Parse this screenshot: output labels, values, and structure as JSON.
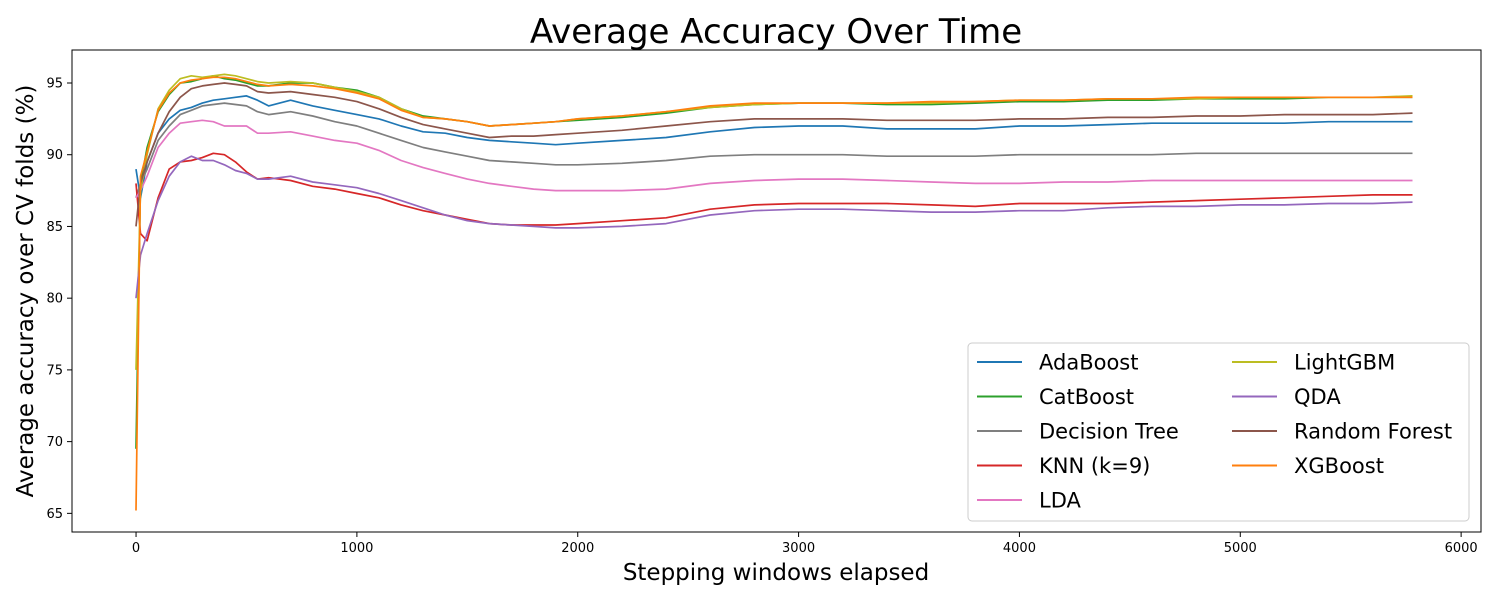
{
  "chart_data": {
    "type": "line",
    "title": "Average Accuracy Over Time",
    "xlabel": "Stepping windows elapsed",
    "ylabel": "Average accuracy over CV folds (%)",
    "xlim": [
      -290,
      6090
    ],
    "ylim": [
      63.7,
      97.3
    ],
    "xticks": [
      0,
      1000,
      2000,
      3000,
      4000,
      5000,
      6000
    ],
    "yticks": [
      65,
      70,
      75,
      80,
      85,
      90,
      95
    ],
    "grid": false,
    "legend": {
      "position": "lower-right",
      "columns": 2
    },
    "x": [
      0,
      20,
      50,
      100,
      150,
      200,
      250,
      300,
      350,
      400,
      450,
      500,
      550,
      600,
      700,
      800,
      900,
      1000,
      1100,
      1200,
      1300,
      1400,
      1500,
      1600,
      1700,
      1800,
      1900,
      2000,
      2200,
      2400,
      2600,
      2800,
      3000,
      3200,
      3400,
      3600,
      3800,
      4000,
      4200,
      4400,
      4600,
      4800,
      5000,
      5200,
      5400,
      5600,
      5780
    ],
    "series": [
      {
        "name": "AdaBoost",
        "color": "#1f77b4",
        "values": [
          89.0,
          87.0,
          89.5,
          91.5,
          92.5,
          93.1,
          93.3,
          93.6,
          93.8,
          93.9,
          94.0,
          94.1,
          93.8,
          93.4,
          93.8,
          93.4,
          93.1,
          92.8,
          92.5,
          92.0,
          91.6,
          91.5,
          91.2,
          91.0,
          90.9,
          90.8,
          90.7,
          90.8,
          91.0,
          91.2,
          91.6,
          91.9,
          92.0,
          92.0,
          91.8,
          91.8,
          91.8,
          92.0,
          92.0,
          92.1,
          92.2,
          92.2,
          92.2,
          92.2,
          92.3,
          92.3,
          92.3
        ]
      },
      {
        "name": "CatBoost",
        "color": "#2ca02c",
        "values": [
          69.5,
          88.0,
          90.5,
          93.0,
          94.2,
          95.0,
          95.1,
          95.3,
          95.5,
          95.3,
          95.2,
          95.0,
          94.8,
          94.8,
          95.0,
          95.0,
          94.7,
          94.5,
          94.0,
          93.2,
          92.7,
          92.5,
          92.3,
          92.0,
          92.1,
          92.2,
          92.3,
          92.4,
          92.6,
          92.9,
          93.3,
          93.5,
          93.6,
          93.6,
          93.5,
          93.5,
          93.6,
          93.7,
          93.7,
          93.8,
          93.8,
          93.9,
          93.9,
          93.9,
          94.0,
          94.0,
          94.0
        ]
      },
      {
        "name": "Decision Tree",
        "color": "#7f7f7f",
        "values": [
          87.0,
          88.0,
          89.0,
          91.0,
          92.0,
          92.8,
          93.1,
          93.4,
          93.5,
          93.6,
          93.5,
          93.4,
          93.0,
          92.8,
          93.0,
          92.7,
          92.3,
          92.0,
          91.5,
          91.0,
          90.5,
          90.2,
          89.9,
          89.6,
          89.5,
          89.4,
          89.3,
          89.3,
          89.4,
          89.6,
          89.9,
          90.0,
          90.0,
          90.0,
          89.9,
          89.9,
          89.9,
          90.0,
          90.0,
          90.0,
          90.0,
          90.1,
          90.1,
          90.1,
          90.1,
          90.1,
          90.1
        ]
      },
      {
        "name": "KNN (k=9)",
        "color": "#d62728",
        "values": [
          88.0,
          84.5,
          84.0,
          87.0,
          89.0,
          89.5,
          89.6,
          89.8,
          90.1,
          90.0,
          89.5,
          88.8,
          88.3,
          88.4,
          88.2,
          87.8,
          87.6,
          87.3,
          87.0,
          86.5,
          86.1,
          85.8,
          85.5,
          85.2,
          85.1,
          85.1,
          85.1,
          85.2,
          85.4,
          85.6,
          86.2,
          86.5,
          86.6,
          86.6,
          86.6,
          86.5,
          86.4,
          86.6,
          86.6,
          86.6,
          86.7,
          86.8,
          86.9,
          87.0,
          87.1,
          87.2,
          87.2
        ]
      },
      {
        "name": "LDA",
        "color": "#e377c2",
        "values": [
          87.0,
          87.5,
          88.5,
          90.5,
          91.5,
          92.2,
          92.3,
          92.4,
          92.3,
          92.0,
          92.0,
          92.0,
          91.5,
          91.5,
          91.6,
          91.3,
          91.0,
          90.8,
          90.3,
          89.6,
          89.1,
          88.7,
          88.3,
          88.0,
          87.8,
          87.6,
          87.5,
          87.5,
          87.5,
          87.6,
          88.0,
          88.2,
          88.3,
          88.3,
          88.2,
          88.1,
          88.0,
          88.0,
          88.1,
          88.1,
          88.2,
          88.2,
          88.2,
          88.2,
          88.2,
          88.2,
          88.2
        ]
      },
      {
        "name": "LightGBM",
        "color": "#bcbd22",
        "values": [
          75.0,
          87.5,
          90.0,
          93.2,
          94.5,
          95.3,
          95.5,
          95.4,
          95.5,
          95.6,
          95.5,
          95.3,
          95.1,
          95.0,
          95.1,
          95.0,
          94.7,
          94.4,
          94.0,
          93.2,
          92.6,
          92.5,
          92.3,
          92.0,
          92.1,
          92.2,
          92.3,
          92.5,
          92.7,
          93.0,
          93.3,
          93.5,
          93.6,
          93.6,
          93.6,
          93.6,
          93.7,
          93.8,
          93.8,
          93.9,
          93.9,
          93.9,
          94.0,
          94.0,
          94.0,
          94.0,
          94.1
        ]
      },
      {
        "name": "QDA",
        "color": "#9467bd",
        "values": [
          80.0,
          83.0,
          84.5,
          86.8,
          88.5,
          89.5,
          89.9,
          89.6,
          89.6,
          89.3,
          88.9,
          88.7,
          88.3,
          88.3,
          88.5,
          88.1,
          87.9,
          87.7,
          87.3,
          86.8,
          86.3,
          85.8,
          85.4,
          85.2,
          85.1,
          85.0,
          84.9,
          84.9,
          85.0,
          85.2,
          85.8,
          86.1,
          86.2,
          86.2,
          86.1,
          86.0,
          86.0,
          86.1,
          86.1,
          86.3,
          86.4,
          86.4,
          86.5,
          86.5,
          86.6,
          86.6,
          86.7
        ]
      },
      {
        "name": "Random Forest",
        "color": "#8c564b",
        "values": [
          85.0,
          88.0,
          89.5,
          91.5,
          93.0,
          94.0,
          94.6,
          94.8,
          94.9,
          95.0,
          94.9,
          94.8,
          94.4,
          94.3,
          94.4,
          94.2,
          94.0,
          93.7,
          93.2,
          92.6,
          92.1,
          91.8,
          91.5,
          91.2,
          91.3,
          91.3,
          91.4,
          91.5,
          91.7,
          92.0,
          92.3,
          92.5,
          92.5,
          92.5,
          92.4,
          92.4,
          92.4,
          92.5,
          92.5,
          92.6,
          92.6,
          92.7,
          92.7,
          92.8,
          92.8,
          92.8,
          92.9
        ]
      },
      {
        "name": "XGBoost",
        "color": "#ff7f0e",
        "values": [
          65.2,
          88.5,
          90.2,
          93.1,
          94.3,
          95.0,
          95.2,
          95.3,
          95.4,
          95.4,
          95.3,
          95.1,
          94.9,
          94.8,
          94.9,
          94.8,
          94.6,
          94.3,
          93.9,
          93.1,
          92.6,
          92.5,
          92.3,
          92.0,
          92.1,
          92.2,
          92.3,
          92.5,
          92.7,
          93.0,
          93.4,
          93.6,
          93.6,
          93.6,
          93.6,
          93.7,
          93.7,
          93.8,
          93.8,
          93.9,
          93.9,
          94.0,
          94.0,
          94.0,
          94.0,
          94.0,
          94.0
        ]
      }
    ]
  }
}
